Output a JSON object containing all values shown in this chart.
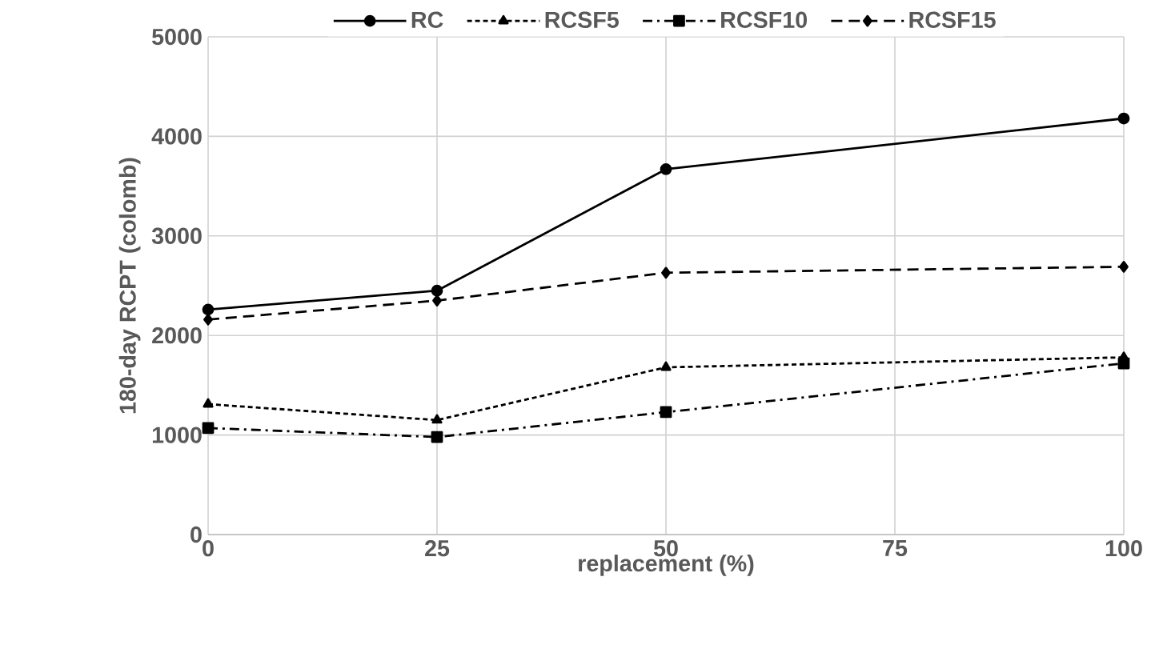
{
  "chart_data": {
    "type": "line",
    "xlabel": "replacement (%)",
    "ylabel": "180-day RCPT (colomb)",
    "x": [
      0,
      25,
      50,
      100
    ],
    "series": [
      {
        "name": "RC",
        "color": "#000000",
        "values": [
          2260,
          2450,
          3670,
          4180
        ],
        "marker": "circle",
        "line_style": "solid"
      },
      {
        "name": "RCSF5",
        "color": "#000000",
        "values": [
          1310,
          1150,
          1680,
          1780
        ],
        "marker": "triangle",
        "line_style": "dotted"
      },
      {
        "name": "RCSF10",
        "color": "#000000",
        "values": [
          1070,
          980,
          1230,
          1720
        ],
        "marker": "square",
        "line_style": "dashdot"
      },
      {
        "name": "RCSF15",
        "color": "#000000",
        "values": [
          2160,
          2350,
          2630,
          2690
        ],
        "marker": "diamond",
        "line_style": "dashed"
      }
    ],
    "xlim": [
      0,
      100
    ],
    "xticks": [
      0,
      25,
      50,
      75,
      100
    ],
    "ylim": [
      0,
      5000
    ],
    "yticks": [
      0,
      1000,
      2000,
      3000,
      4000,
      5000
    ],
    "grid": true,
    "legend": "top"
  }
}
